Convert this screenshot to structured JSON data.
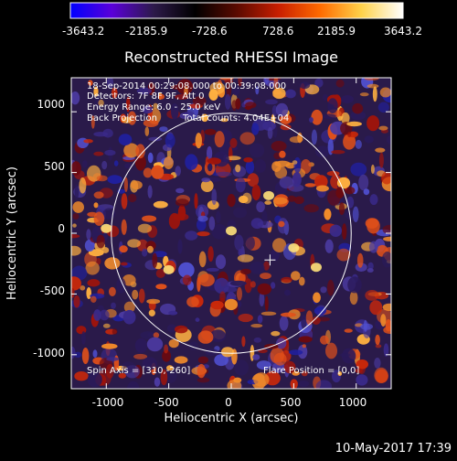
{
  "colorbar": {
    "ticks": [
      "-3643.2",
      "-2185.9",
      "-728.6",
      "728.6",
      "2185.9",
      "3643.2"
    ],
    "colors": [
      "#0000ff",
      "#5a00d8",
      "#2d1a4a",
      "#000000",
      "#5a0a00",
      "#c81e00",
      "#ff6a00",
      "#ffd24a",
      "#ffffff"
    ]
  },
  "plot": {
    "title": "Reconstructed RHESSI Image",
    "xlabel": "Heliocentric X (arcsec)",
    "ylabel": "Heliocentric Y (arcsec)",
    "xticks": [
      "-1000",
      "-500",
      "0",
      "500",
      "1000"
    ],
    "yticks": [
      "1000",
      "500",
      "0",
      "-500",
      "-1000"
    ],
    "xlim": [
      -1280,
      1280
    ],
    "ylim": [
      -1280,
      1280
    ],
    "solar_radius": 960,
    "cross_position": [
      310,
      -220
    ]
  },
  "annotations": {
    "line1": "18-Sep-2014 00:29:08.000 to 00:39:08.000",
    "line2": "Detectors: 7F 8F 9F, Att 0",
    "line3": "Energy Range: 6.0 - 25.0 keV",
    "line4_a": "Back Projection",
    "line4_b": "Total counts: 4.04E+04",
    "spin_axis": "Spin Axis = [310,-260]",
    "flare_position": "Flare Position = [0,0]"
  },
  "footer": {
    "timestamp": "10-May-2017 17:39"
  }
}
